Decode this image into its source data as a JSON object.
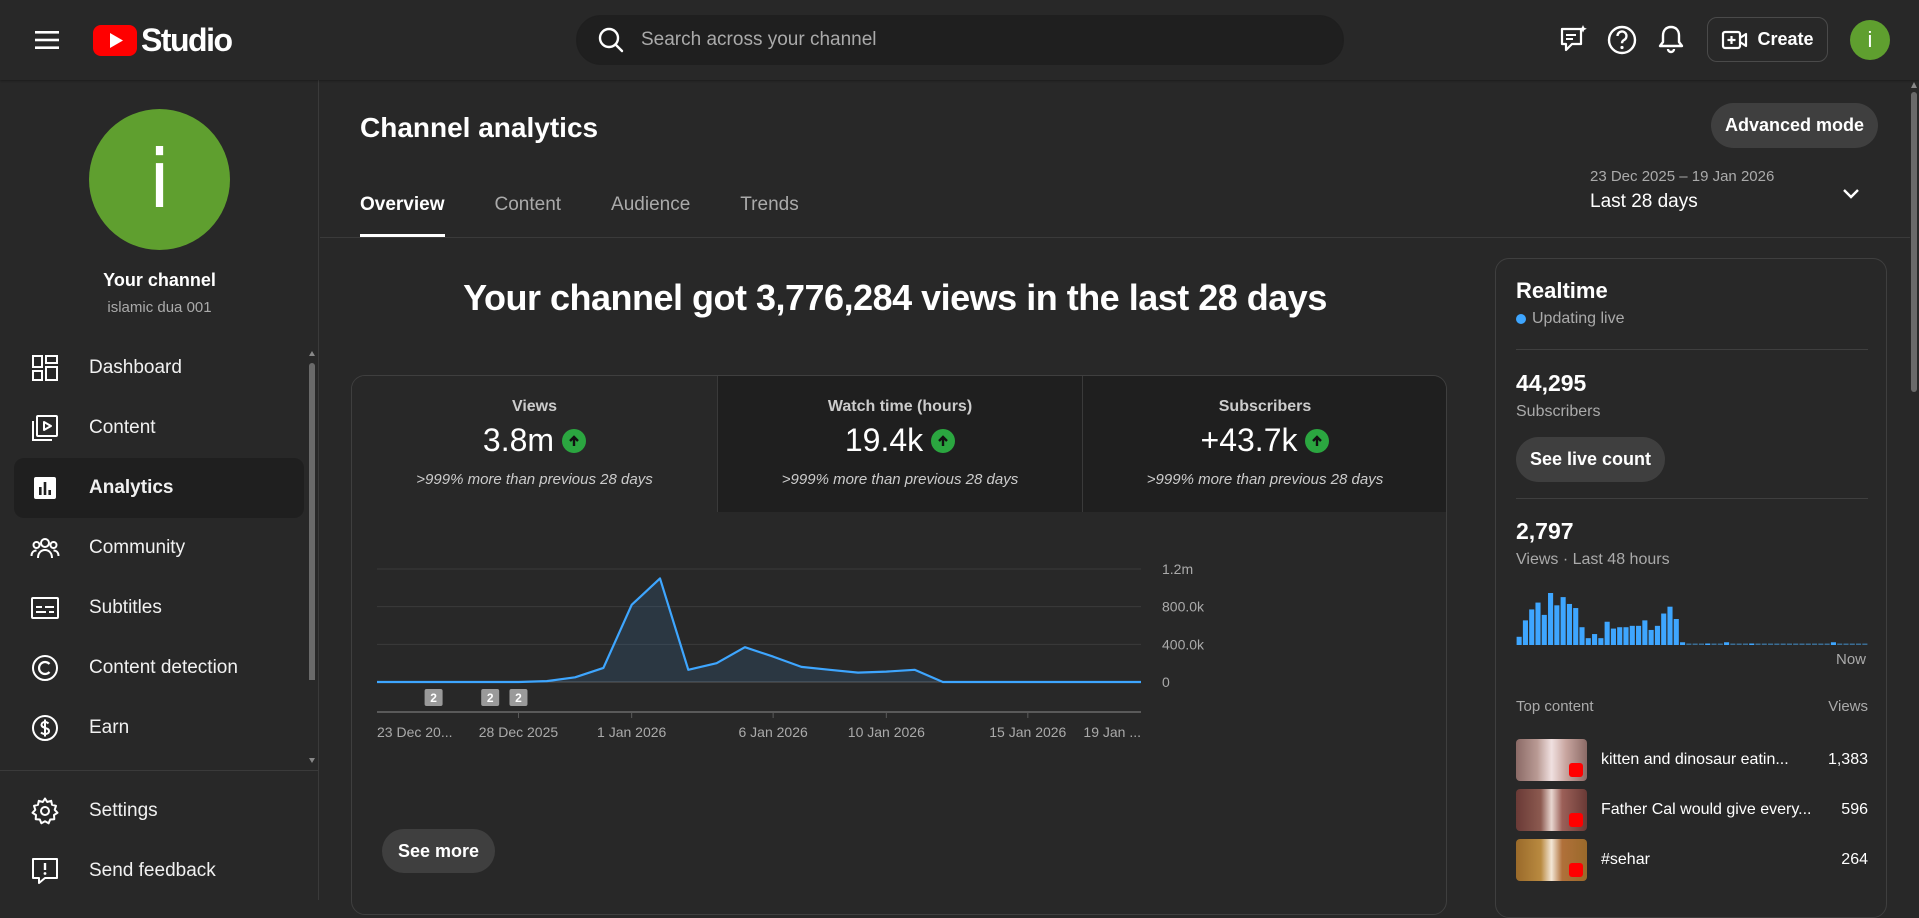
{
  "header": {
    "brand": "Studio",
    "search_placeholder": "Search across your channel",
    "create_label": "Create",
    "avatar_letter": "i"
  },
  "sidebar": {
    "avatar_letter": "i",
    "channel_title": "Your channel",
    "channel_handle": "islamic dua 001",
    "items": [
      {
        "label": "Dashboard",
        "icon": "dashboard-icon"
      },
      {
        "label": "Content",
        "icon": "content-icon"
      },
      {
        "label": "Analytics",
        "icon": "analytics-icon",
        "active": true
      },
      {
        "label": "Community",
        "icon": "community-icon"
      },
      {
        "label": "Subtitles",
        "icon": "subtitles-icon"
      },
      {
        "label": "Content detection",
        "icon": "copyright-icon"
      },
      {
        "label": "Earn",
        "icon": "dollar-icon"
      }
    ],
    "bottom_items": [
      {
        "label": "Settings",
        "icon": "gear-icon"
      },
      {
        "label": "Send feedback",
        "icon": "feedback-icon"
      }
    ]
  },
  "main": {
    "title": "Channel analytics",
    "advanced_mode": "Advanced mode",
    "tabs": [
      "Overview",
      "Content",
      "Audience",
      "Trends"
    ],
    "active_tab": "Overview",
    "date_range": {
      "dates": "23 Dec 2025 – 19 Jan 2026",
      "label": "Last 28 days"
    },
    "headline": "Your channel got 3,776,284 views in the last 28 days",
    "metrics": [
      {
        "label": "Views",
        "value": "3.8m",
        "note": ">999% more than previous 28 days"
      },
      {
        "label": "Watch time (hours)",
        "value": "19.4k",
        "note": ">999% more than previous 28 days"
      },
      {
        "label": "Subscribers",
        "value": "+43.7k",
        "note": ">999% more than previous 28 days"
      }
    ],
    "see_more": "See more"
  },
  "chart_data": {
    "type": "area",
    "x_labels": [
      "23 Dec 20...",
      "28 Dec 2025",
      "1 Jan 2026",
      "6 Jan 2026",
      "10 Jan 2026",
      "15 Jan 2026",
      "19 Jan ..."
    ],
    "y_ticks": [
      "1.2m",
      "800.0k",
      "400.0k",
      "0"
    ],
    "ylim": [
      0,
      1200000
    ],
    "values": [
      0,
      0,
      0,
      0,
      0,
      0,
      10000,
      50000,
      150000,
      820000,
      1100000,
      130000,
      200000,
      370000,
      270000,
      160000,
      130000,
      100000,
      110000,
      130000,
      0,
      0,
      0,
      0,
      0,
      0,
      0,
      0
    ],
    "markers": [
      {
        "day_index": 2,
        "label": "2"
      },
      {
        "day_index": 4,
        "label": "2"
      },
      {
        "day_index": 5,
        "label": "2"
      }
    ],
    "color": "#3ea6ff"
  },
  "realtime": {
    "title": "Realtime",
    "status": "Updating live",
    "subscribers": "44,295",
    "subscribers_label": "Subscribers",
    "see_live_count": "See live count",
    "views": "2,797",
    "views_label": "Views · Last 48 hours",
    "now_label": "Now",
    "bars": [
      6,
      18,
      26,
      31,
      22,
      38,
      29,
      35,
      30,
      27,
      13,
      5,
      8,
      5,
      17,
      12,
      13,
      13,
      14,
      14,
      18,
      11,
      14,
      23,
      28,
      19,
      2,
      0,
      0,
      0,
      1,
      0,
      0,
      2,
      0,
      0,
      0,
      1,
      0,
      0,
      0,
      0,
      0,
      0,
      0,
      0,
      0,
      0,
      0,
      0,
      2,
      0,
      0,
      0,
      0,
      0
    ],
    "top_content_label": "Top content",
    "top_content_views_label": "Views",
    "top_content": [
      {
        "title": "kitten and dinosaur eatin...",
        "views": "1,383"
      },
      {
        "title": "Father Cal would give every...",
        "views": "596"
      },
      {
        "title": "#sehar",
        "views": "264"
      }
    ]
  }
}
